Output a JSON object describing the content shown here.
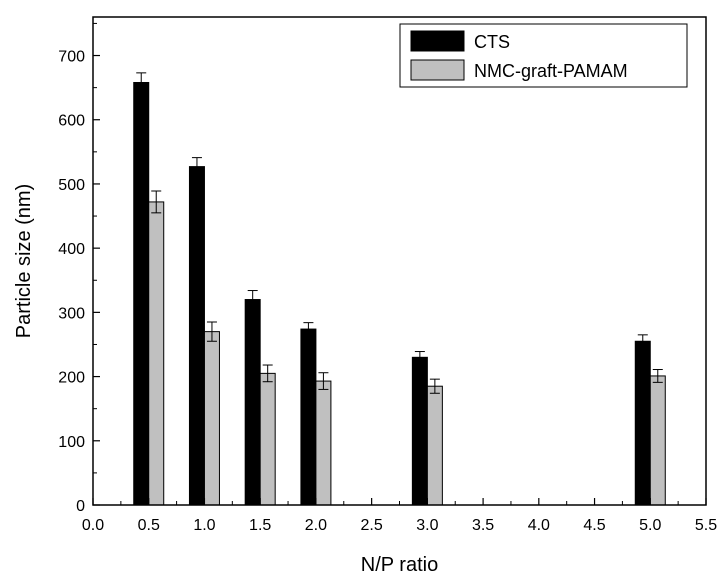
{
  "chart_data": {
    "type": "bar",
    "title": "",
    "xlabel": "N/P ratio",
    "ylabel": "Particle size (nm)",
    "xlim": [
      0.0,
      5.5
    ],
    "ylim": [
      0,
      760
    ],
    "x_ticks": [
      "0.0",
      "0.5",
      "1.0",
      "1.5",
      "2.0",
      "2.5",
      "3.0",
      "3.5",
      "4.0",
      "4.5",
      "5.0",
      "5.5"
    ],
    "y_ticks": [
      "0",
      "100",
      "200",
      "300",
      "400",
      "500",
      "600",
      "700"
    ],
    "x": [
      0.5,
      1.0,
      1.5,
      2.0,
      3.0,
      5.0
    ],
    "series": [
      {
        "name": "CTS",
        "color": "#000000",
        "values": [
          658,
          527,
          320,
          274,
          230,
          255
        ],
        "errors": [
          15,
          14,
          14,
          10,
          9,
          10
        ]
      },
      {
        "name": "NMC-graft-PAMAM",
        "color": "#c0c0c0",
        "values": [
          472,
          270,
          205,
          193,
          185,
          201
        ],
        "errors": [
          17,
          15,
          13,
          13,
          11,
          10
        ]
      }
    ],
    "legend_position": "top-right",
    "grid": false,
    "error_bars": true
  }
}
